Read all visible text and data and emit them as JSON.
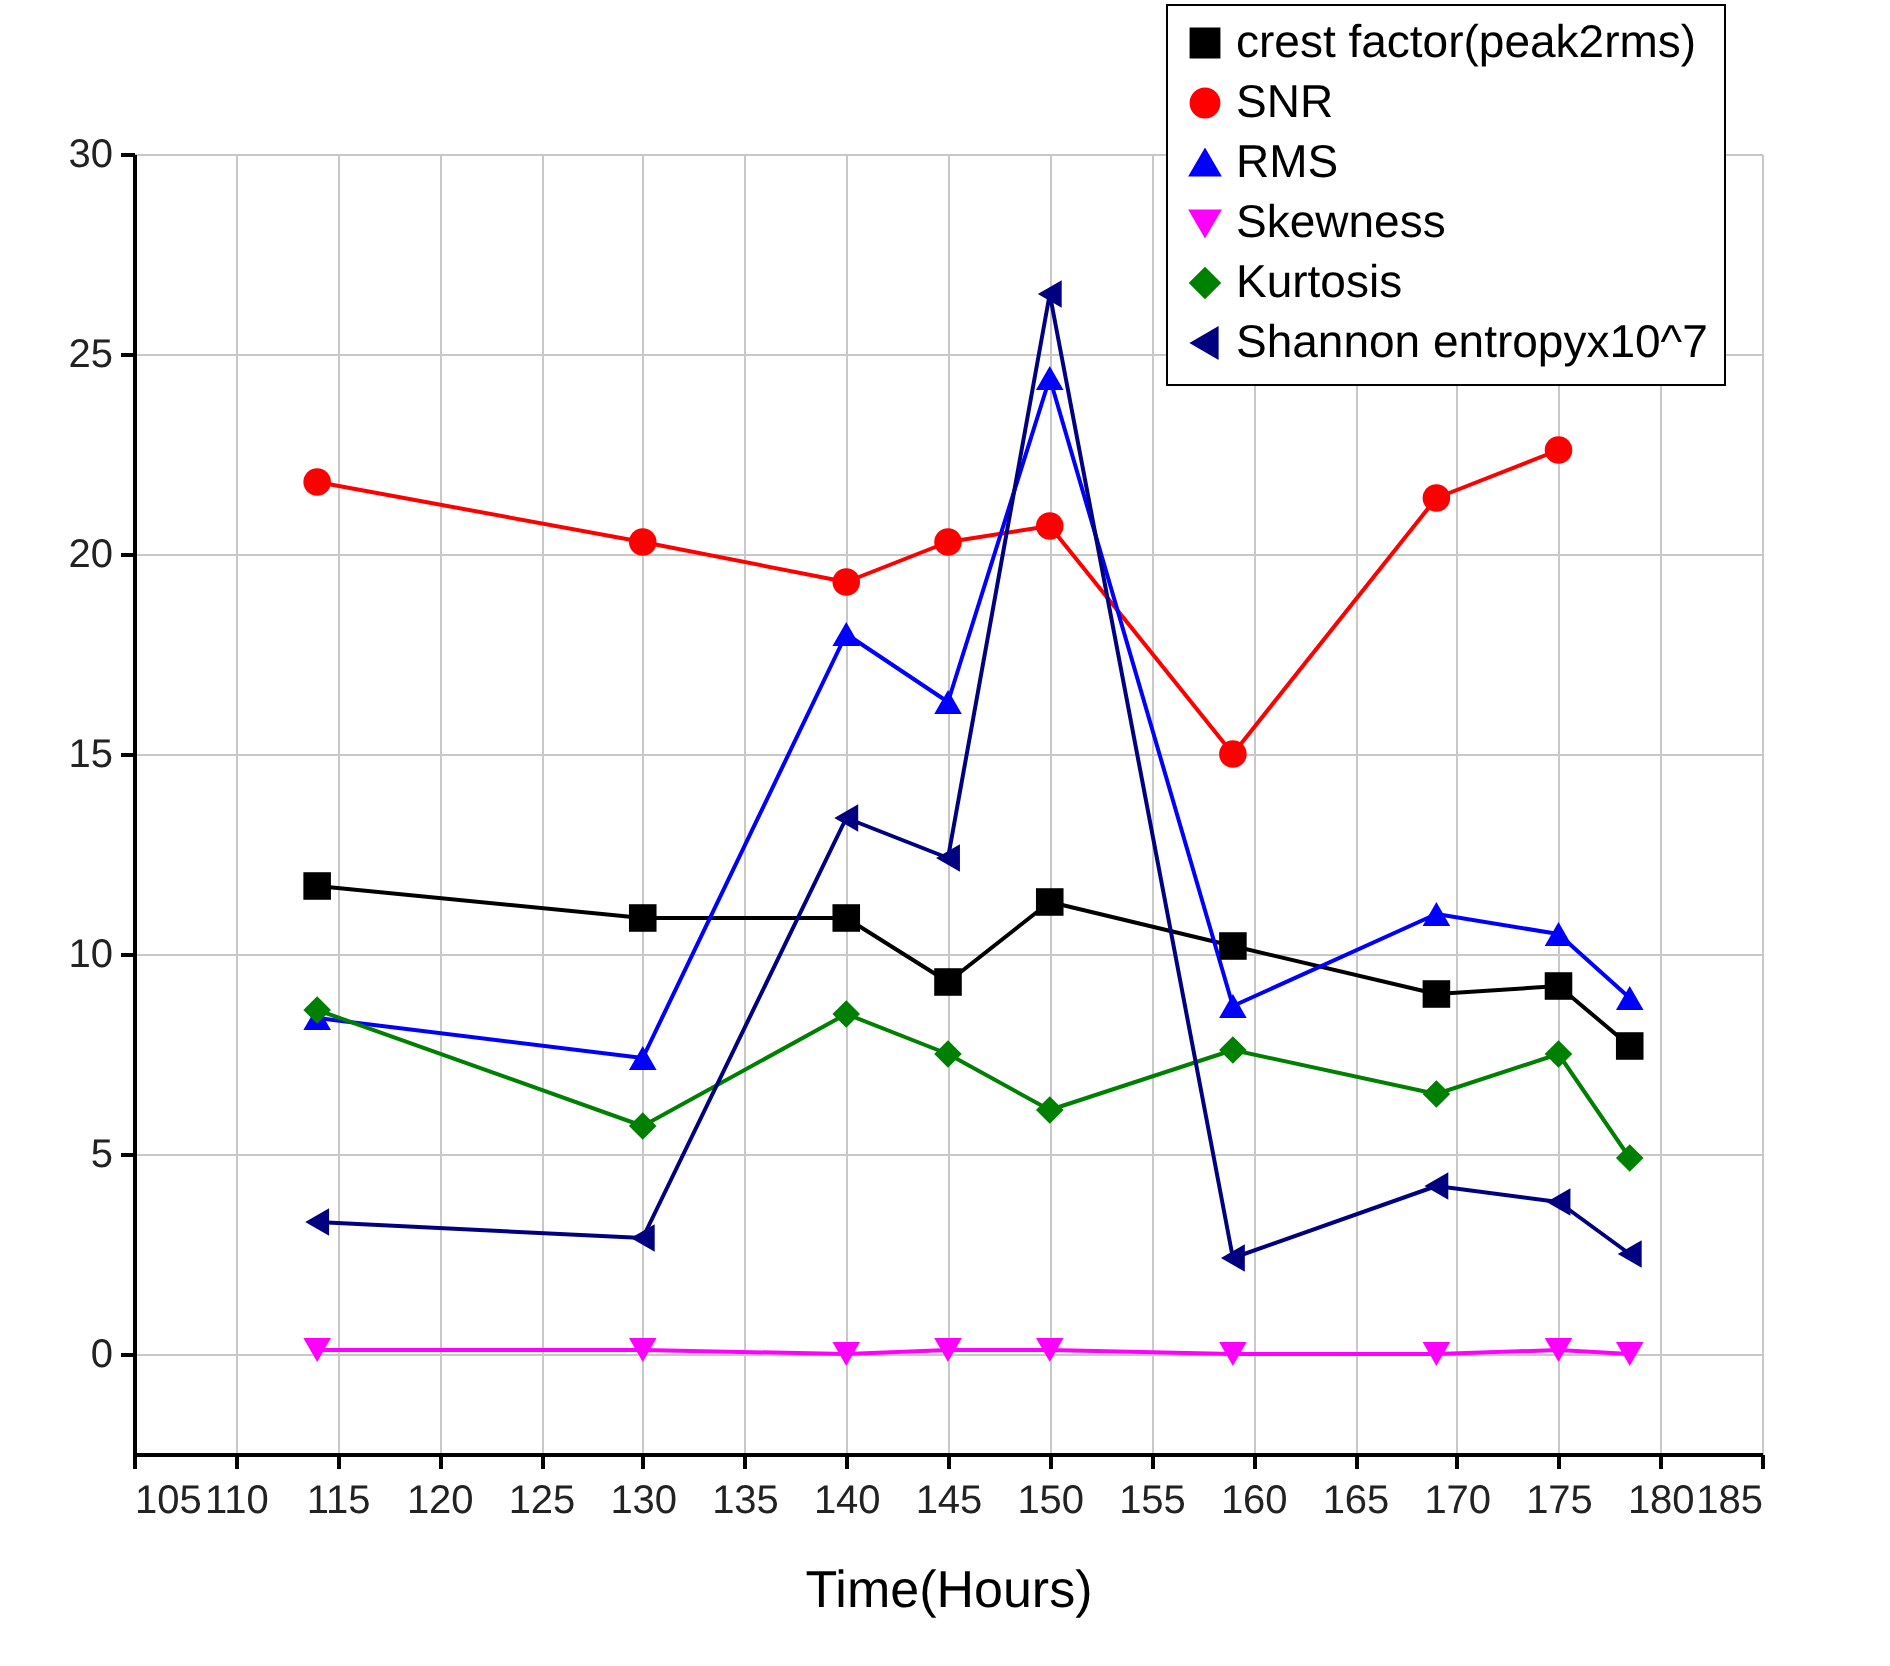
{
  "chart_data": {
    "type": "line",
    "xlabel": "Time(Hours)",
    "x": [
      114,
      130,
      140,
      145,
      150,
      159,
      169,
      175,
      178.5
    ],
    "xlim": [
      105,
      185
    ],
    "xticks": [
      105,
      110,
      115,
      120,
      125,
      130,
      135,
      140,
      145,
      150,
      155,
      160,
      165,
      170,
      175,
      180,
      185
    ],
    "ylim": [
      -2.5,
      30
    ],
    "yticks": [
      0,
      5,
      10,
      15,
      20,
      25,
      30
    ],
    "grid": true,
    "legend": "top right",
    "line_style": "solid",
    "series": [
      {
        "name": "crest factor(peak2rms)",
        "color": "#000000",
        "marker": "square",
        "values": [
          11.7,
          10.9,
          10.9,
          9.3,
          11.3,
          10.2,
          9.0,
          9.2,
          7.7
        ]
      },
      {
        "name": "SNR",
        "color": "#ff0000",
        "marker": "circle",
        "values": [
          21.8,
          20.3,
          19.3,
          20.3,
          20.7,
          15.0,
          21.4,
          22.6,
          null
        ]
      },
      {
        "name": "RMS",
        "color": "#0000ff",
        "marker": "triangle-up",
        "values": [
          8.4,
          7.4,
          18.0,
          16.3,
          24.4,
          8.7,
          11.0,
          10.5,
          8.9
        ]
      },
      {
        "name": "Skewness",
        "color": "#ff00ff",
        "marker": "triangle-down",
        "values": [
          0.1,
          0.1,
          0.0,
          0.1,
          0.1,
          0.0,
          0.0,
          0.1,
          0.0
        ]
      },
      {
        "name": "Kurtosis",
        "color": "#008000",
        "marker": "diamond",
        "values": [
          8.6,
          5.7,
          8.5,
          7.5,
          6.1,
          7.6,
          6.5,
          7.5,
          4.9
        ]
      },
      {
        "name": "Shannon entropyx10^7",
        "color": "#000080",
        "marker": "triangle-left",
        "values": [
          3.3,
          2.9,
          13.4,
          12.4,
          26.5,
          2.4,
          4.2,
          3.8,
          2.5
        ]
      }
    ]
  }
}
